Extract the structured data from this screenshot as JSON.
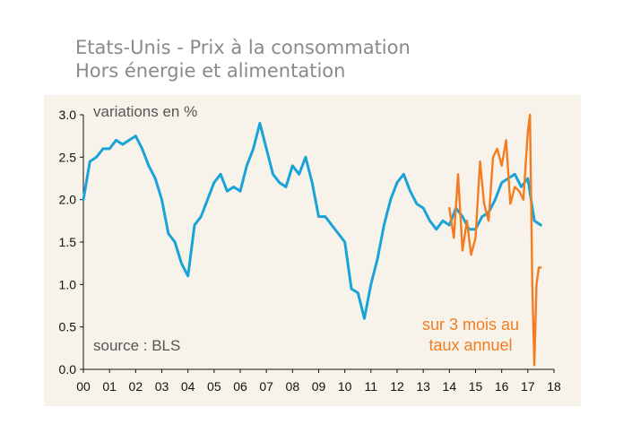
{
  "title_line1": "Etats-Unis - Prix à la consommation",
  "title_line2": "Hors énergie et alimentation",
  "colors": {
    "panel_bg": "#f7f3ea",
    "series_main": "#1aa3d9",
    "series_3m": "#f47c20",
    "text": "#555555"
  },
  "chart_data": {
    "type": "line",
    "annotation_units": "variations en %",
    "annotation_source": "source : BLS",
    "annotation_series2": [
      "sur 3 mois au",
      "taux annuel"
    ],
    "x_tick_labels": [
      "00",
      "01",
      "02",
      "03",
      "04",
      "05",
      "06",
      "07",
      "08",
      "09",
      "10",
      "11",
      "12",
      "13",
      "14",
      "15",
      "16",
      "17",
      "18"
    ],
    "y_tick_labels": [
      "0.0",
      "0.5",
      "1.0",
      "1.5",
      "2.0",
      "2.5",
      "3.0"
    ],
    "xlim": [
      2000,
      2018
    ],
    "ylim": [
      0,
      3
    ],
    "legend": "none",
    "grid": false,
    "series": [
      {
        "color": "#1aa3d9",
        "x": [
          2000.0,
          2000.25,
          2000.5,
          2000.75,
          2001.0,
          2001.25,
          2001.5,
          2001.75,
          2002.0,
          2002.25,
          2002.5,
          2002.75,
          2003.0,
          2003.25,
          2003.5,
          2003.75,
          2004.0,
          2004.25,
          2004.5,
          2004.75,
          2005.0,
          2005.25,
          2005.5,
          2005.75,
          2006.0,
          2006.25,
          2006.5,
          2006.75,
          2007.0,
          2007.25,
          2007.5,
          2007.75,
          2008.0,
          2008.25,
          2008.5,
          2008.75,
          2009.0,
          2009.25,
          2009.5,
          2009.75,
          2010.0,
          2010.25,
          2010.5,
          2010.75,
          2011.0,
          2011.25,
          2011.5,
          2011.75,
          2012.0,
          2012.25,
          2012.5,
          2012.75,
          2013.0,
          2013.25,
          2013.5,
          2013.75,
          2014.0,
          2014.25,
          2014.5,
          2014.75,
          2015.0,
          2015.25,
          2015.5,
          2015.75,
          2016.0,
          2016.25,
          2016.5,
          2016.75,
          2017.0,
          2017.25,
          2017.5
        ],
        "y": [
          2.0,
          2.45,
          2.5,
          2.6,
          2.6,
          2.7,
          2.65,
          2.7,
          2.75,
          2.6,
          2.4,
          2.25,
          2.0,
          1.6,
          1.5,
          1.25,
          1.1,
          1.7,
          1.8,
          2.0,
          2.2,
          2.3,
          2.1,
          2.15,
          2.1,
          2.4,
          2.6,
          2.9,
          2.6,
          2.3,
          2.2,
          2.15,
          2.4,
          2.3,
          2.5,
          2.2,
          1.8,
          1.8,
          1.7,
          1.6,
          1.5,
          0.95,
          0.9,
          0.6,
          1.0,
          1.3,
          1.7,
          2.0,
          2.2,
          2.3,
          2.1,
          1.95,
          1.9,
          1.75,
          1.65,
          1.75,
          1.7,
          1.9,
          1.8,
          1.65,
          1.65,
          1.8,
          1.85,
          2.0,
          2.2,
          2.25,
          2.3,
          2.15,
          2.25,
          1.75,
          1.7
        ]
      },
      {
        "color": "#f47c20",
        "x": [
          2014.0,
          2014.17,
          2014.33,
          2014.5,
          2014.67,
          2014.83,
          2015.0,
          2015.17,
          2015.33,
          2015.5,
          2015.67,
          2015.83,
          2016.0,
          2016.17,
          2016.33,
          2016.5,
          2016.67,
          2016.83,
          2017.0,
          2017.08,
          2017.17,
          2017.25,
          2017.33,
          2017.42,
          2017.5
        ],
        "y": [
          1.9,
          1.55,
          2.3,
          1.4,
          1.75,
          1.35,
          1.55,
          2.45,
          1.95,
          1.75,
          2.5,
          2.6,
          2.4,
          2.7,
          1.95,
          2.15,
          2.1,
          2.0,
          2.8,
          3.0,
          1.0,
          0.05,
          1.0,
          1.2,
          1.2
        ]
      }
    ]
  }
}
